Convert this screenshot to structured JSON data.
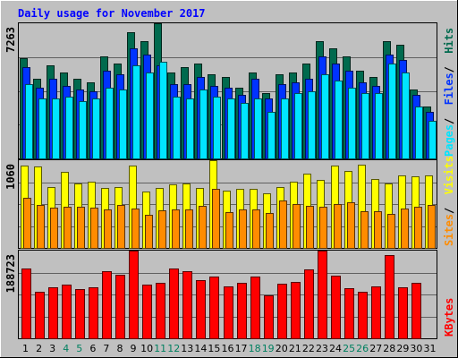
{
  "title": "Daily usage for November 2017",
  "colors": {
    "background": "#c0c0c0",
    "plot_bg": "#c0c0c0",
    "title": "#0000ff",
    "hits": "#006a4e",
    "files": "#0033ff",
    "pages": "#00e5ff",
    "visits": "#ffff00",
    "sites": "#ff8c00",
    "kbytes": "#ff0000",
    "weekend": "#008060",
    "weekday": "#000000"
  },
  "chart_data": [
    {
      "type": "bar",
      "panel": "hits-files-pages",
      "ymax_label": "7263",
      "ylim": [
        0,
        7263
      ],
      "right_legend": [
        "Pages",
        "Files",
        "Hits"
      ],
      "categories": [
        "1",
        "2",
        "3",
        "4",
        "5",
        "6",
        "7",
        "8",
        "9",
        "10",
        "11",
        "12",
        "13",
        "14",
        "15",
        "16",
        "17",
        "18",
        "19",
        "20",
        "21",
        "22",
        "23",
        "24",
        "25",
        "26",
        "27",
        "28",
        "29",
        "30",
        "31"
      ],
      "weekend_days": [
        "4",
        "5",
        "11",
        "12",
        "18",
        "19",
        "25",
        "26"
      ],
      "series": [
        {
          "name": "Hits",
          "values": [
            5400,
            4300,
            5000,
            4600,
            4300,
            4100,
            5500,
            5100,
            6800,
            6300,
            7263,
            4600,
            4900,
            5100,
            4500,
            4400,
            3800,
            4600,
            3500,
            4500,
            4600,
            5100,
            6300,
            5900,
            5500,
            4700,
            4400,
            6300,
            6100,
            3700,
            2800
          ]
        },
        {
          "name": "Files",
          "values": [
            4900,
            3800,
            4300,
            3900,
            3700,
            3600,
            4700,
            4500,
            5900,
            5600,
            5000,
            4000,
            4000,
            4400,
            3900,
            3800,
            3400,
            4300,
            3200,
            4000,
            4100,
            4300,
            5500,
            5100,
            4700,
            4100,
            3900,
            5600,
            5300,
            3400,
            2500
          ]
        },
        {
          "name": "Pages",
          "values": [
            4000,
            3200,
            3200,
            3300,
            3100,
            3200,
            3800,
            3700,
            5000,
            4600,
            5200,
            3300,
            3200,
            3700,
            3300,
            3200,
            3000,
            3200,
            2500,
            3200,
            3500,
            3600,
            4500,
            4200,
            3800,
            3500,
            3500,
            5100,
            4600,
            2800,
            2000
          ]
        }
      ]
    },
    {
      "type": "bar",
      "panel": "visits-sites",
      "ymax_label": "1060",
      "ylim": [
        0,
        1060
      ],
      "right_legend": [
        "Sites",
        "Visits"
      ],
      "categories": [
        "1",
        "2",
        "3",
        "4",
        "5",
        "6",
        "7",
        "8",
        "9",
        "10",
        "11",
        "12",
        "13",
        "14",
        "15",
        "16",
        "17",
        "18",
        "19",
        "20",
        "21",
        "22",
        "23",
        "24",
        "25",
        "26",
        "27",
        "28",
        "29",
        "30",
        "31"
      ],
      "series": [
        {
          "name": "Visits",
          "values": [
            990,
            980,
            740,
            920,
            780,
            800,
            730,
            740,
            990,
            680,
            720,
            770,
            780,
            720,
            1060,
            690,
            710,
            710,
            660,
            740,
            800,
            900,
            820,
            1000,
            930,
            1010,
            830,
            780,
            880,
            860,
            880
          ]
        },
        {
          "name": "Sites",
          "values": [
            610,
            520,
            490,
            500,
            500,
            490,
            470,
            520,
            480,
            400,
            450,
            460,
            470,
            510,
            710,
            430,
            460,
            470,
            420,
            570,
            530,
            510,
            500,
            530,
            550,
            440,
            440,
            410,
            480,
            500,
            520
          ]
        }
      ]
    },
    {
      "type": "bar",
      "panel": "kbytes",
      "ymax_label": "188723",
      "ylim": [
        0,
        188723
      ],
      "right_legend": [
        "KBytes"
      ],
      "categories": [
        "1",
        "2",
        "3",
        "4",
        "5",
        "6",
        "7",
        "8",
        "9",
        "10",
        "11",
        "12",
        "13",
        "14",
        "15",
        "16",
        "17",
        "18",
        "19",
        "20",
        "21",
        "22",
        "23",
        "24",
        "25",
        "26",
        "27",
        "28",
        "29",
        "30",
        "31"
      ],
      "series": [
        {
          "name": "KBytes",
          "values": [
            150000,
            100000,
            110000,
            115000,
            105000,
            110000,
            145000,
            136000,
            188723,
            116000,
            120000,
            150000,
            145000,
            126000,
            132000,
            111000,
            120000,
            132000,
            92000,
            118000,
            122000,
            148000,
            188723,
            135000,
            108000,
            100000,
            112000,
            180000,
            110000,
            120000,
            0
          ]
        }
      ]
    }
  ]
}
